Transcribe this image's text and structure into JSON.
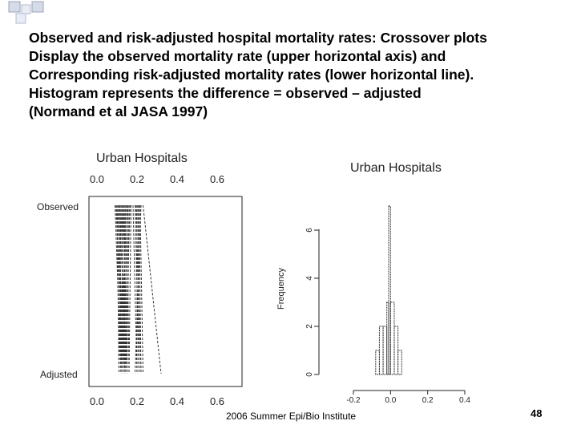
{
  "slide": {
    "title_lines": [
      "Observed and risk-adjusted hospital mortality rates: Crossover plots",
      "Display the observed mortality rate (upper horizontal axis) and",
      "Corresponding risk-adjusted mortality rates (lower horizontal line).",
      "Histogram represents the difference = observed – adjusted",
      "(Normand et al JASA 1997)"
    ],
    "footer": "2006 Summer Epi/Bio Institute",
    "page_number": "48"
  },
  "colors": {
    "accent_square": "#d6dbe8",
    "accent_border": "#9aa3bd",
    "ink": "#000000"
  },
  "chart_data": [
    {
      "type": "crossover",
      "title": "Urban Hospitals",
      "top_axis_ticks": [
        0.0,
        0.2,
        0.4,
        0.6
      ],
      "bottom_axis_ticks": [
        0.0,
        0.2,
        0.4,
        0.6
      ],
      "top_tick_labels": [
        "0.0",
        "0.2",
        "0.4",
        "0.6"
      ],
      "bottom_tick_labels": [
        "0.0",
        "0.2",
        "0.4",
        "0.6"
      ],
      "xlim": [
        0.0,
        0.6
      ],
      "row_labels": {
        "top": "Observed",
        "bottom": "Adjusted"
      },
      "segments": [
        {
          "observed": 0.09,
          "adjusted": 0.12
        },
        {
          "observed": 0.095,
          "adjusted": 0.13
        },
        {
          "observed": 0.1,
          "adjusted": 0.11
        },
        {
          "observed": 0.1,
          "adjusted": 0.14
        },
        {
          "observed": 0.105,
          "adjusted": 0.12
        },
        {
          "observed": 0.11,
          "adjusted": 0.13
        },
        {
          "observed": 0.11,
          "adjusted": 0.15
        },
        {
          "observed": 0.115,
          "adjusted": 0.12
        },
        {
          "observed": 0.12,
          "adjusted": 0.14
        },
        {
          "observed": 0.12,
          "adjusted": 0.11
        },
        {
          "observed": 0.125,
          "adjusted": 0.13
        },
        {
          "observed": 0.13,
          "adjusted": 0.15
        },
        {
          "observed": 0.13,
          "adjusted": 0.12
        },
        {
          "observed": 0.135,
          "adjusted": 0.14
        },
        {
          "observed": 0.14,
          "adjusted": 0.13
        },
        {
          "observed": 0.14,
          "adjusted": 0.15
        },
        {
          "observed": 0.145,
          "adjusted": 0.12
        },
        {
          "observed": 0.15,
          "adjusted": 0.14
        },
        {
          "observed": 0.15,
          "adjusted": 0.16
        },
        {
          "observed": 0.155,
          "adjusted": 0.13
        },
        {
          "observed": 0.16,
          "adjusted": 0.15
        },
        {
          "observed": 0.165,
          "adjusted": 0.14
        },
        {
          "observed": 0.17,
          "adjusted": 0.16
        },
        {
          "observed": 0.18,
          "adjusted": 0.2
        },
        {
          "observed": 0.19,
          "adjusted": 0.21
        },
        {
          "observed": 0.195,
          "adjusted": 0.22
        },
        {
          "observed": 0.2,
          "adjusted": 0.2
        },
        {
          "observed": 0.205,
          "adjusted": 0.21
        },
        {
          "observed": 0.21,
          "adjusted": 0.22
        },
        {
          "observed": 0.215,
          "adjusted": 0.23
        },
        {
          "observed": 0.22,
          "adjusted": 0.19
        },
        {
          "observed": 0.23,
          "adjusted": 0.32
        }
      ]
    },
    {
      "type": "histogram",
      "title": "Urban Hospitals",
      "ylabel": "Frequency",
      "x_ticks": [
        -0.2,
        0.0,
        0.2,
        0.4
      ],
      "x_tick_labels": [
        "-0.2",
        "0.0",
        "0.2",
        "0.4"
      ],
      "y_ticks": [
        0,
        2,
        4,
        6
      ],
      "y_tick_labels": [
        "0",
        "2",
        "4",
        "6"
      ],
      "xlim": [
        -0.2,
        0.4
      ],
      "ylim": [
        0,
        7
      ],
      "bins": [
        {
          "left": -0.08,
          "right": -0.06,
          "count": 1
        },
        {
          "left": -0.06,
          "right": -0.04,
          "count": 2
        },
        {
          "left": -0.04,
          "right": -0.02,
          "count": 2
        },
        {
          "left": -0.02,
          "right": -0.01,
          "count": 3
        },
        {
          "left": -0.01,
          "right": 0.0,
          "count": 7
        },
        {
          "left": 0.0,
          "right": 0.02,
          "count": 3
        },
        {
          "left": 0.02,
          "right": 0.04,
          "count": 2
        },
        {
          "left": 0.04,
          "right": 0.06,
          "count": 1
        }
      ]
    }
  ]
}
